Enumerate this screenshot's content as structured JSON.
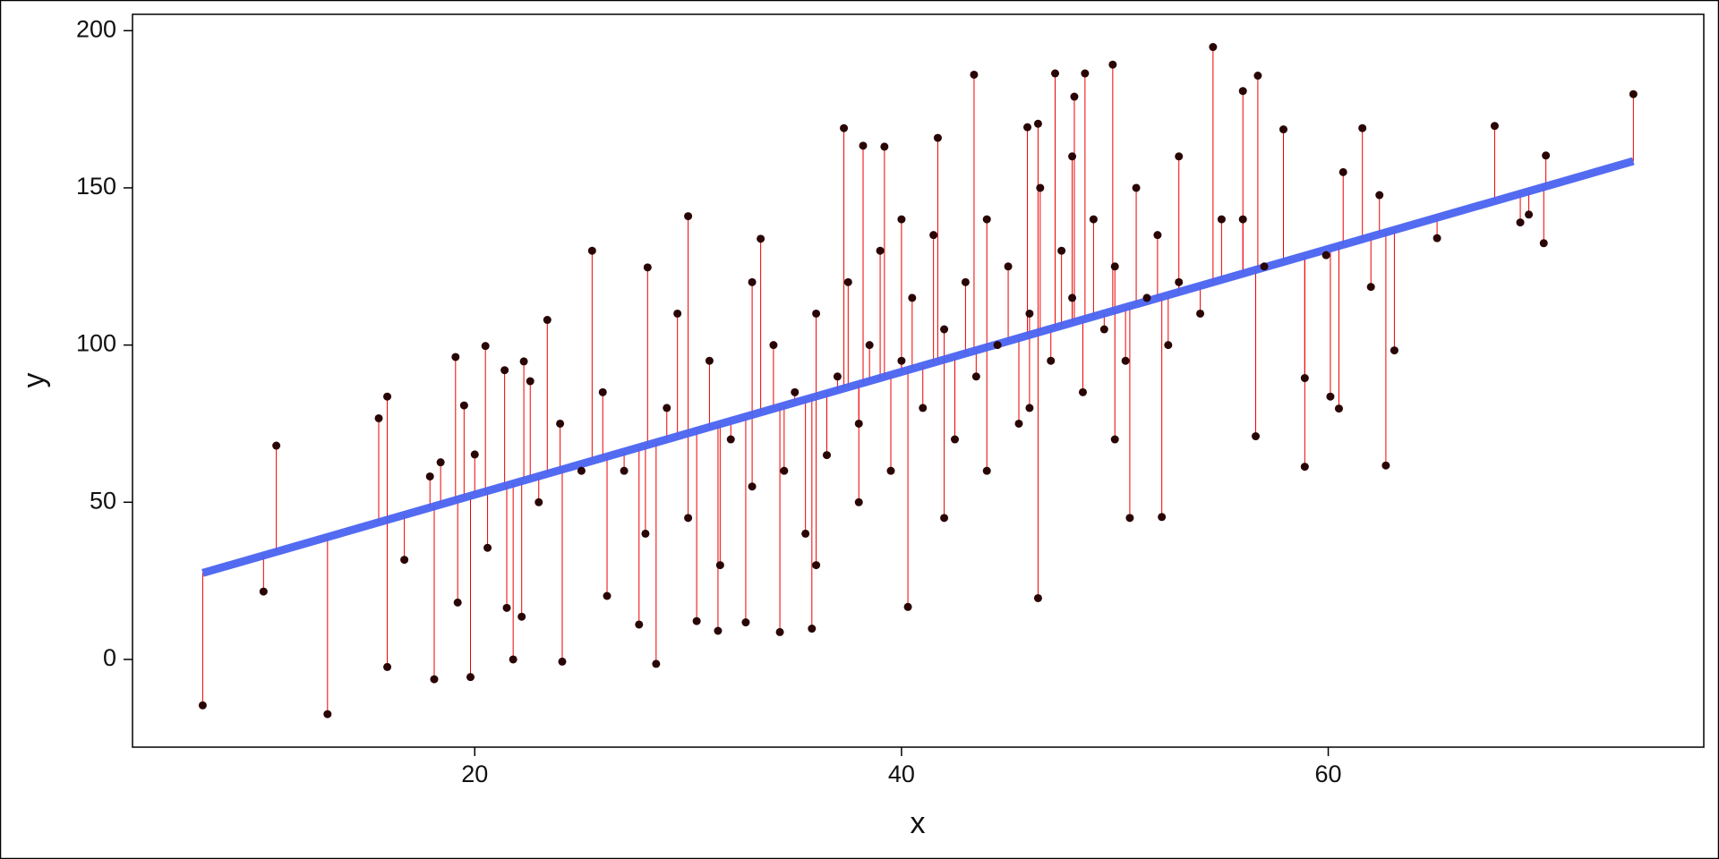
{
  "chart_data": {
    "type": "scatter",
    "x_label": "x",
    "y_label": "y",
    "xlim": [
      3.96,
      77.6
    ],
    "ylim": [
      -27.9,
      205.2
    ],
    "xticks": [
      20,
      40,
      60
    ],
    "yticks": [
      0,
      50,
      100,
      150,
      200
    ],
    "point_color": "#2a0505",
    "residual_color": "#ee0000",
    "points": {
      "x": [
        7.25,
        10.1,
        10.7,
        13.1,
        15.5,
        15.9,
        15.9,
        16.7,
        17.9,
        18.1,
        18.4,
        19.1,
        19.2,
        19.5,
        19.8,
        20,
        20.5,
        20.6,
        21.4,
        21.5,
        21.8,
        22.2,
        22.3,
        22.6,
        23.4,
        24.1,
        25.5,
        26.2,
        27.7,
        28.1,
        28.5,
        30,
        30.4,
        31.4,
        32.7,
        33.4,
        34.3,
        35.8,
        37.3,
        38.2,
        39.2,
        40.3,
        41.7,
        43.4,
        45.9,
        46.4,
        46.4,
        47.2,
        48.1,
        48.6,
        49.9,
        50.7,
        52.2,
        54.6,
        56.6,
        56.7,
        56,
        57.9,
        58.9,
        58.9,
        59.9,
        60.1,
        60.5,
        60.7,
        61.6,
        62,
        62.4,
        62.7,
        63.1,
        65.1,
        67.8,
        69,
        69.4,
        70.1,
        70.2,
        74.3,
        27,
        29,
        30,
        31,
        32,
        33,
        34,
        35,
        35.5,
        36,
        36.5,
        37,
        37.5,
        38,
        38.5,
        39,
        39.5,
        40,
        40.5,
        41,
        41.5,
        42,
        42.5,
        43,
        43.5,
        44,
        44.5,
        45,
        45.5,
        46,
        46.5,
        47,
        47.5,
        48,
        48.5,
        49,
        49.5,
        50,
        50.5,
        51,
        51.5,
        52,
        52.5,
        53,
        54,
        55,
        23,
        24,
        25,
        26,
        28,
        29.5,
        31.5,
        33,
        34.5,
        36,
        38,
        40,
        42,
        44,
        46,
        48,
        50,
        53,
        57,
        56
      ],
      "y": [
        -14.6,
        21.6,
        68,
        -17.4,
        76.7,
        -2.4,
        83.6,
        31.7,
        58.2,
        -6.3,
        62.7,
        96.2,
        18.1,
        80.8,
        -5.6,
        65.2,
        99.7,
        35.5,
        92,
        16.4,
        0,
        13.6,
        94.8,
        88.5,
        108,
        -0.7,
        130,
        20.2,
        11.1,
        124.7,
        -1.4,
        141,
        12.2,
        9.1,
        11.8,
        133.8,
        8.7,
        9.8,
        169,
        163.4,
        163.1,
        16.7,
        165.9,
        186,
        169.3,
        170.4,
        19.5,
        186.4,
        179,
        186.4,
        189.2,
        45,
        45.3,
        194.8,
        71,
        185.7,
        180.8,
        168.6,
        89.5,
        61.3,
        128.6,
        83.6,
        79.8,
        155,
        169,
        118.5,
        147.7,
        61.7,
        98.3,
        134,
        169.7,
        139,
        141.5,
        132.4,
        160.3,
        179.8,
        60,
        80,
        45,
        95,
        70,
        55,
        100,
        85,
        40,
        110,
        65,
        90,
        120,
        75,
        100,
        130,
        60,
        95,
        115,
        80,
        135,
        105,
        70,
        120,
        90,
        140,
        100,
        125,
        75,
        110,
        150,
        95,
        130,
        115,
        85,
        140,
        105,
        125,
        95,
        150,
        115,
        135,
        100,
        120,
        110,
        140,
        50,
        75,
        60,
        85,
        40,
        110,
        30,
        120,
        60,
        30,
        50,
        140,
        45,
        60,
        80,
        160,
        70,
        160,
        125,
        140
      ]
    },
    "fit": {
      "color": "#4a63f0",
      "x": [
        7.25,
        74.3
      ],
      "y": [
        27.5,
        158.5
      ]
    }
  }
}
